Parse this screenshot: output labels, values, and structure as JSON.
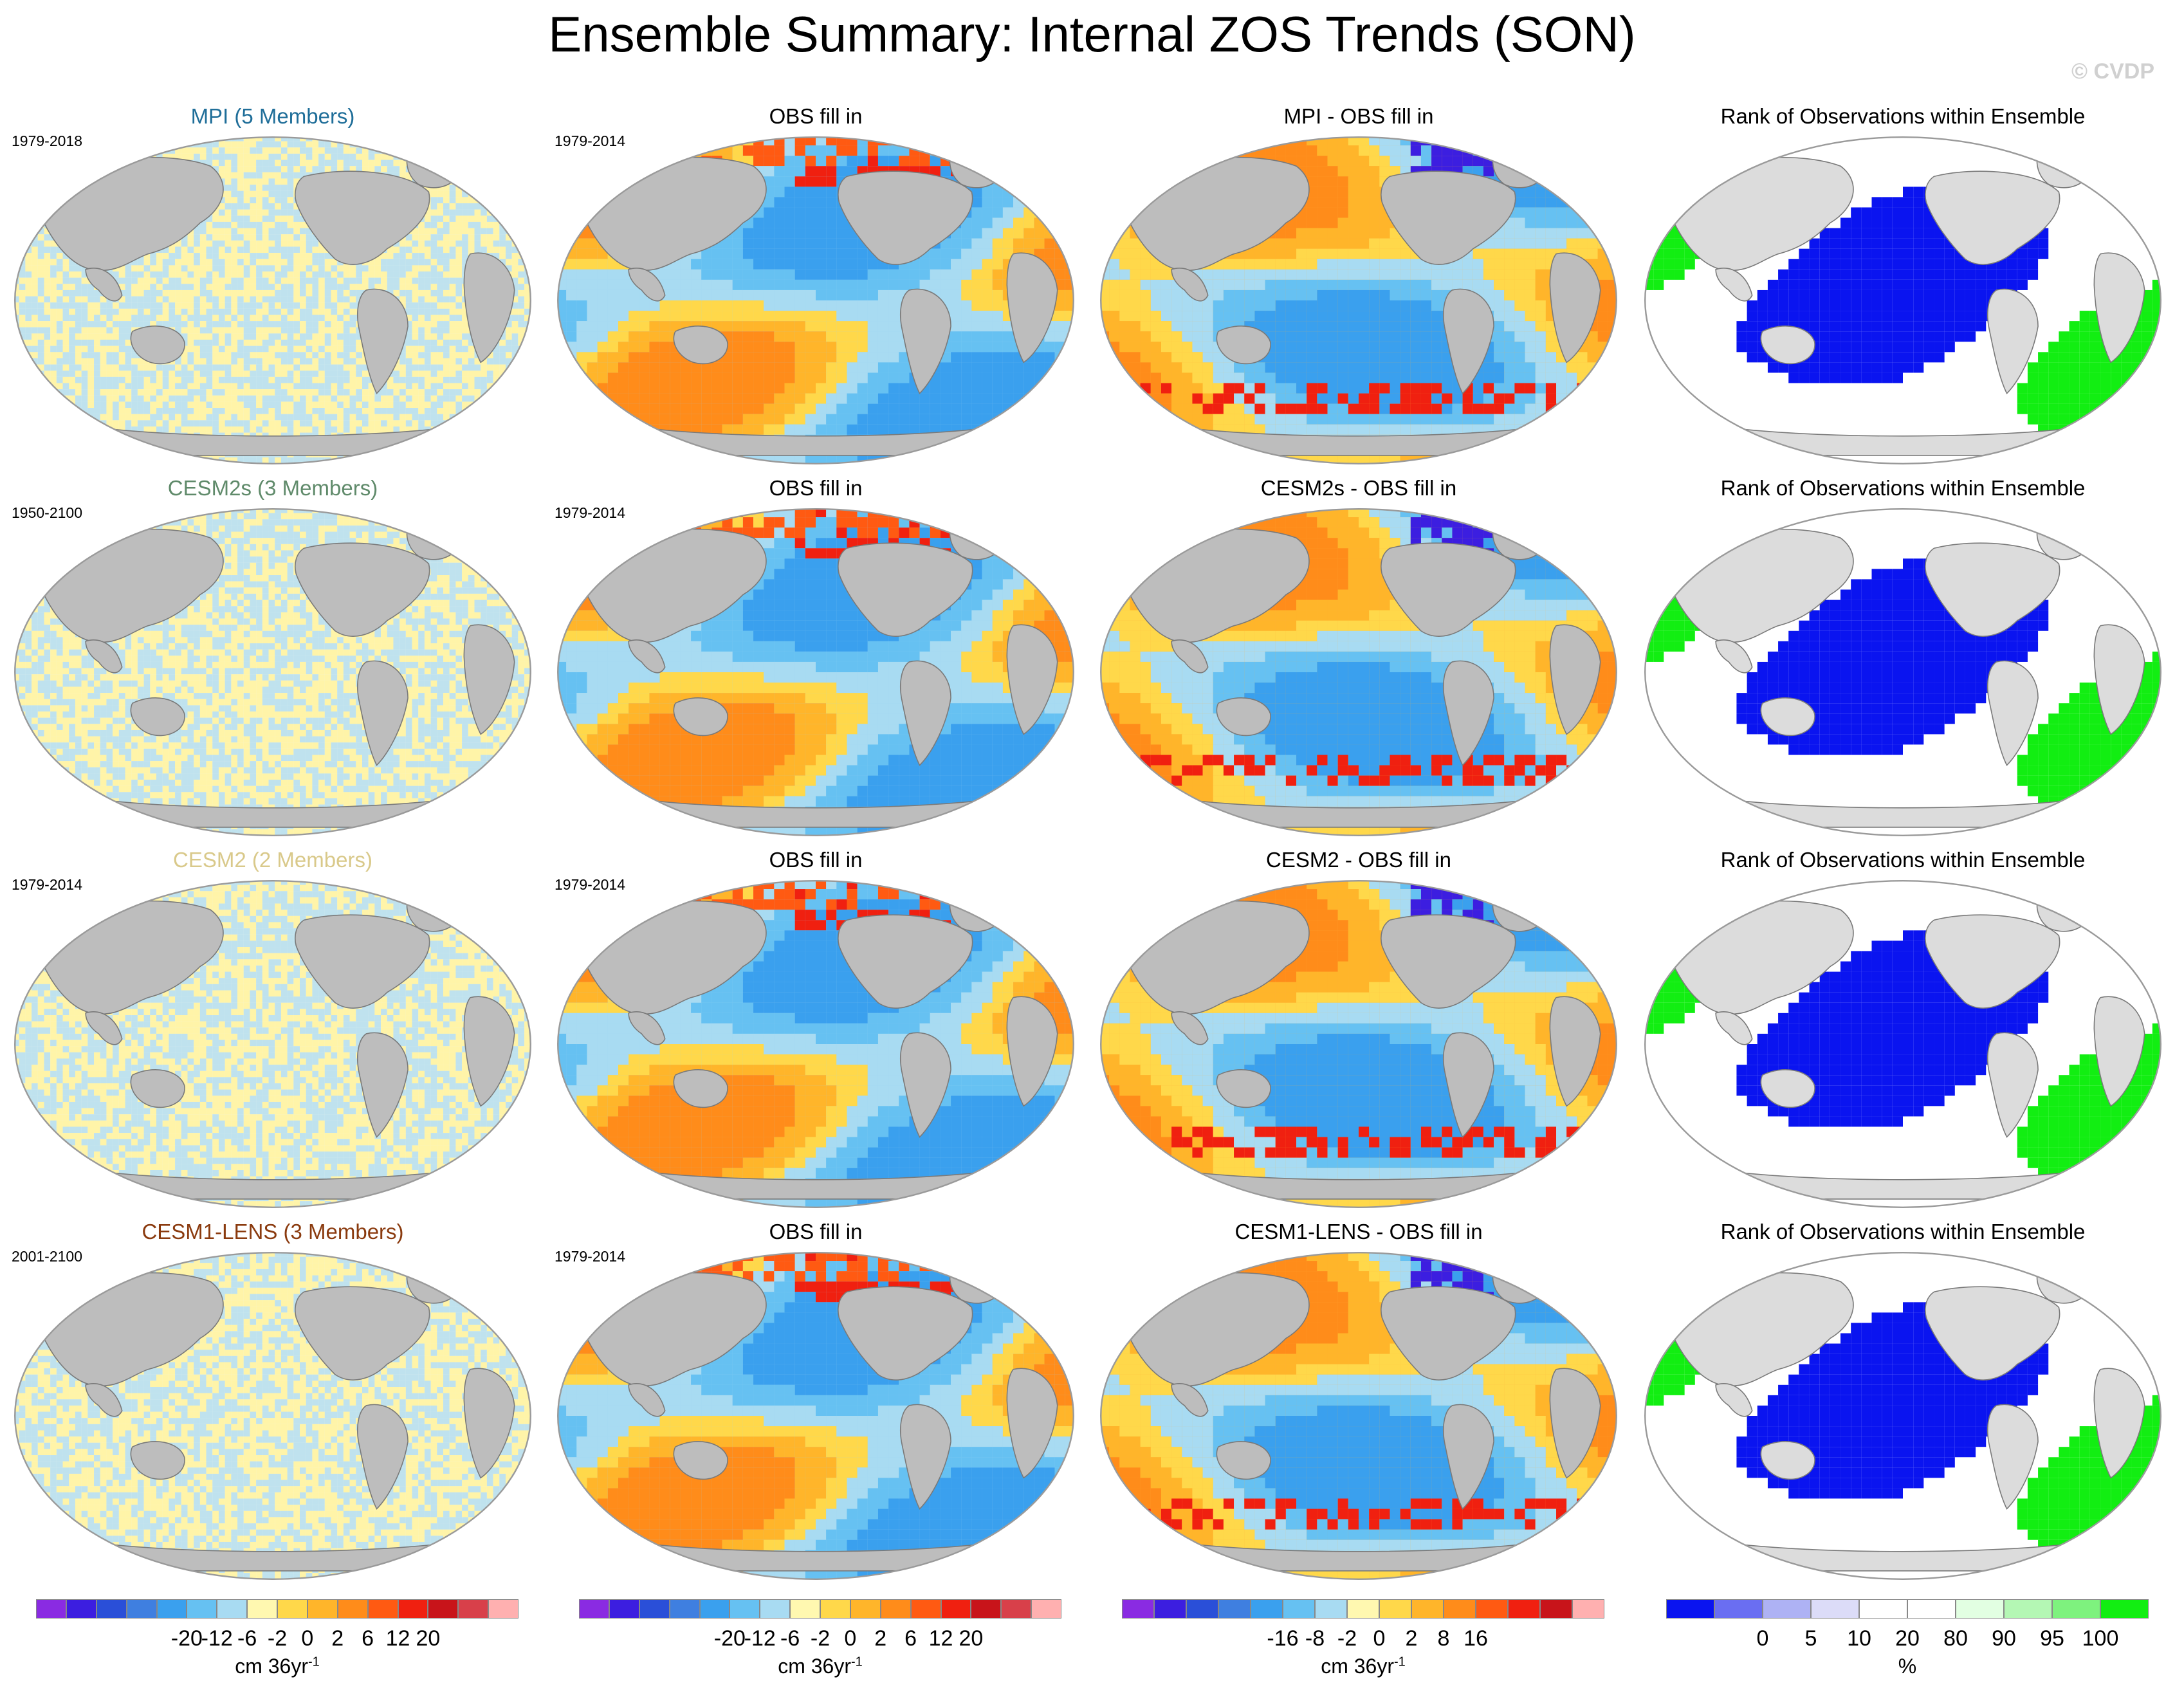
{
  "title": "Ensemble Summary: Internal ZOS Trends (SON)",
  "copyright": "© CVDP",
  "chart_data": {
    "type": "heatmap",
    "rows": [
      {
        "ensemble": "MPI (5 Members)",
        "ensemble_color": "#1f6e99",
        "period": "1979-2018",
        "obs_period": "1979-2014",
        "diff_title": "MPI - OBS fill in"
      },
      {
        "ensemble": "CESM2s (3 Members)",
        "ensemble_color": "#5f8a6a",
        "period": "1950-2100",
        "obs_period": "1979-2014",
        "diff_title": "CESM2s - OBS fill in"
      },
      {
        "ensemble": "CESM2 (2 Members)",
        "ensemble_color": "#d9c98a",
        "period": "1979-2014",
        "obs_period": "1979-2014",
        "diff_title": "CESM2 - OBS fill in"
      },
      {
        "ensemble": "CESM1-LENS (3 Members)",
        "ensemble_color": "#8a3a0e",
        "period": "2001-2100",
        "obs_period": "1979-2014",
        "diff_title": "CESM1-LENS - OBS fill in"
      }
    ],
    "obs_title": "OBS fill in",
    "rank_title": "Rank of Observations within Ensemble",
    "colorbars": [
      {
        "ticks": [
          "-20",
          "-12",
          "-6",
          "-2",
          "0",
          "2",
          "6",
          "12",
          "20"
        ],
        "colors": [
          "#8a2be2",
          "#3c1ee0",
          "#2a4fd8",
          "#3f7fe0",
          "#3aa0ee",
          "#66c1f2",
          "#a8dbf2",
          "#fff8b0",
          "#ffd84a",
          "#ffb52a",
          "#ff8c1a",
          "#ff5a12",
          "#f02010",
          "#c8141a",
          "#d8404a",
          "#ffb0b0"
        ],
        "unit": "cm 36yr",
        "unit_sup": "-1"
      },
      {
        "ticks": [
          "-20",
          "-12",
          "-6",
          "-2",
          "0",
          "2",
          "6",
          "12",
          "20"
        ],
        "colors": [
          "#8a2be2",
          "#3c1ee0",
          "#2a4fd8",
          "#3f7fe0",
          "#3aa0ee",
          "#66c1f2",
          "#a8dbf2",
          "#fff8b0",
          "#ffd84a",
          "#ffb52a",
          "#ff8c1a",
          "#ff5a12",
          "#f02010",
          "#c8141a",
          "#d8404a",
          "#ffb0b0"
        ],
        "unit": "cm 36yr",
        "unit_sup": "-1"
      },
      {
        "ticks": [
          "-16",
          "-8",
          "-2",
          "0",
          "2",
          "8",
          "16"
        ],
        "colors": [
          "#8a2be2",
          "#3c1ee0",
          "#2a4fd8",
          "#3f7fe0",
          "#3aa0ee",
          "#66c1f2",
          "#a8dbf2",
          "#fff8b0",
          "#ffd84a",
          "#ffb52a",
          "#ff8c1a",
          "#ff5a12",
          "#f02010",
          "#c8141a",
          "#ffb0b0"
        ],
        "unit": "cm 36yr",
        "unit_sup": "-1"
      },
      {
        "ticks": [
          "0",
          "5",
          "10",
          "20",
          "80",
          "90",
          "95",
          "100"
        ],
        "colors": [
          "#0a14f0",
          "#6a6ef2",
          "#aeb2f4",
          "#dcdcf8",
          "#ffffff",
          "#ffffff",
          "#e2ffe2",
          "#b4f7b4",
          "#7ef27e",
          "#12ee12"
        ],
        "unit": "%",
        "unit_sup": ""
      }
    ]
  }
}
